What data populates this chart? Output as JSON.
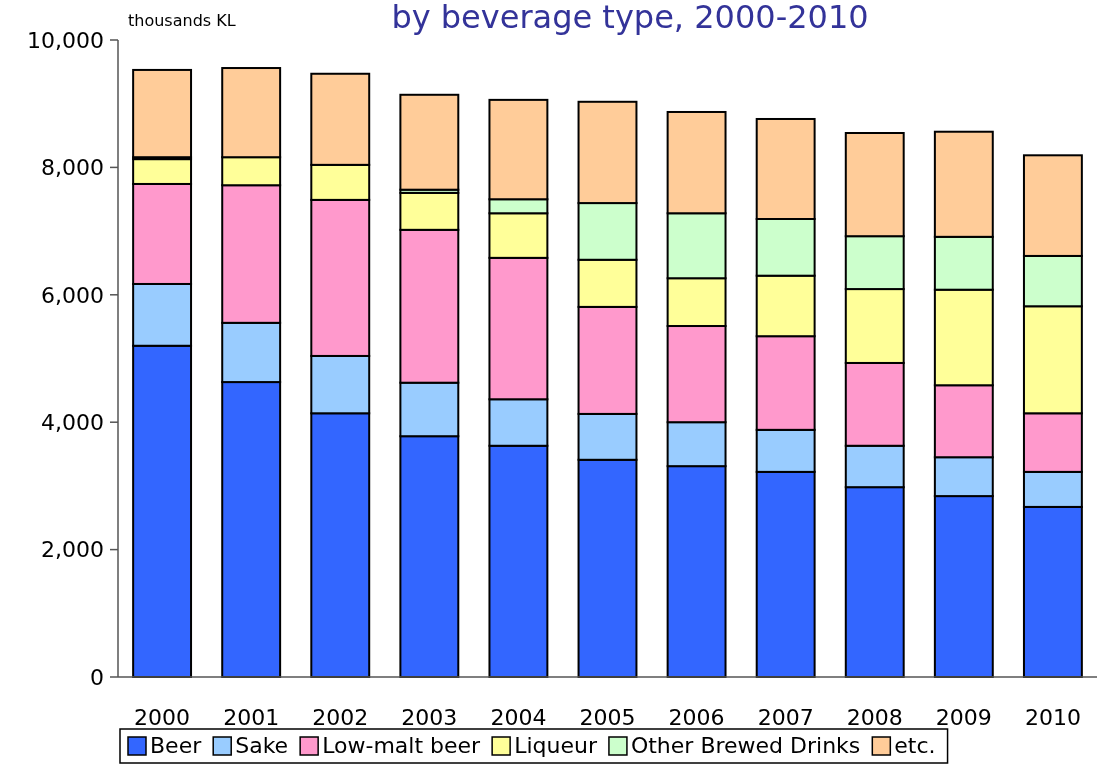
{
  "chart_data": {
    "type": "bar",
    "title": "by beverage type, 2000-2010",
    "ylabel": "thousands KL",
    "categories": [
      "2000",
      "2001",
      "2002",
      "2003",
      "2004",
      "2005",
      "2006",
      "2007",
      "2008",
      "2009",
      "2010"
    ],
    "stacked": true,
    "ylim": [
      0,
      10000
    ],
    "yticks": [
      {
        "value": 0,
        "label": "0"
      },
      {
        "value": 2000,
        "label": "2,000"
      },
      {
        "value": 4000,
        "label": "4,000"
      },
      {
        "value": 6000,
        "label": "6,000"
      },
      {
        "value": 8000,
        "label": "8,000"
      },
      {
        "value": 10000,
        "label": "10,000"
      }
    ],
    "grid": false,
    "legend": "bottom",
    "series": [
      {
        "name": "Beer",
        "color": "#3366ff",
        "values": [
          5200,
          4630,
          4140,
          3780,
          3630,
          3410,
          3310,
          3220,
          2980,
          2840,
          2670
        ]
      },
      {
        "name": "Sake",
        "color": "#99ccff",
        "values": [
          970,
          930,
          900,
          840,
          730,
          720,
          690,
          660,
          650,
          610,
          550
        ]
      },
      {
        "name": "Low-malt beer",
        "color": "#ff99cc",
        "values": [
          1570,
          2160,
          2450,
          2400,
          2220,
          1680,
          1510,
          1470,
          1300,
          1130,
          920
        ]
      },
      {
        "name": "Liqueur",
        "color": "#ffff99",
        "values": [
          390,
          440,
          550,
          580,
          700,
          740,
          750,
          950,
          1160,
          1500,
          1680
        ]
      },
      {
        "name": "Other Brewed Drinks",
        "color": "#ccffcc",
        "values": [
          30,
          null,
          null,
          50,
          220,
          890,
          1020,
          890,
          830,
          830,
          790
        ]
      },
      {
        "name": "etc.",
        "color": "#ffcc99",
        "values": [
          1370,
          1400,
          1430,
          1490,
          1560,
          1590,
          1590,
          1570,
          1620,
          1650,
          1580
        ]
      }
    ]
  }
}
